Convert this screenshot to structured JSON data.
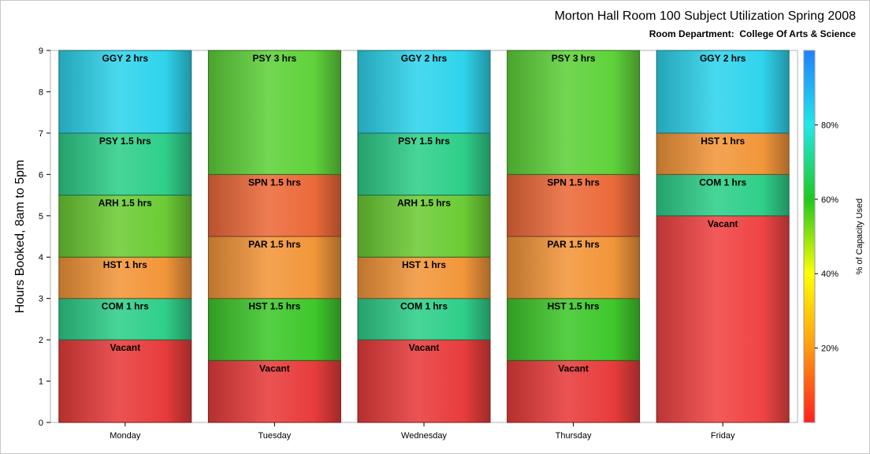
{
  "chart_data": {
    "type": "bar",
    "stacked": true,
    "title": "Morton Hall Room 100 Subject Utilization Spring 2008",
    "subtitle": "Room Department:  College Of Arts & Science",
    "ylabel": "Hours Booked, 8am to 5pm",
    "xlabel": "",
    "ylim": [
      0,
      9
    ],
    "yticks": [
      0,
      1,
      2,
      3,
      4,
      5,
      6,
      7,
      8,
      9
    ],
    "categories": [
      "Monday",
      "Tuesday",
      "Wednesday",
      "Thursday",
      "Friday"
    ],
    "stacks": [
      {
        "day": "Monday",
        "segments": [
          {
            "label": "Vacant",
            "hours": 2,
            "color": "#e83c3c"
          },
          {
            "label": "COM 1 hrs",
            "hours": 1,
            "color": "#2fcf8a"
          },
          {
            "label": "HST 1 hrs",
            "hours": 1,
            "color": "#f2963a"
          },
          {
            "label": "ARH 1.5 hrs",
            "hours": 1.5,
            "color": "#6ccc35"
          },
          {
            "label": "PSY 1.5 hrs",
            "hours": 1.5,
            "color": "#2fcf8a"
          },
          {
            "label": "GGY 2 hrs",
            "hours": 2,
            "color": "#2fd4ec"
          }
        ]
      },
      {
        "day": "Tuesday",
        "segments": [
          {
            "label": "Vacant",
            "hours": 1.5,
            "color": "#e83c3c"
          },
          {
            "label": "HST 1.5 hrs",
            "hours": 1.5,
            "color": "#3fc82c"
          },
          {
            "label": "PAR 1.5 hrs",
            "hours": 1.5,
            "color": "#f2963a"
          },
          {
            "label": "SPN 1.5 hrs",
            "hours": 1.5,
            "color": "#ec6a3a"
          },
          {
            "label": "PSY 3 hrs",
            "hours": 3,
            "color": "#5fd23a"
          }
        ]
      },
      {
        "day": "Wednesday",
        "segments": [
          {
            "label": "Vacant",
            "hours": 2,
            "color": "#e83c3c"
          },
          {
            "label": "COM 1 hrs",
            "hours": 1,
            "color": "#2fcf8a"
          },
          {
            "label": "HST 1 hrs",
            "hours": 1,
            "color": "#f2963a"
          },
          {
            "label": "ARH 1.5 hrs",
            "hours": 1.5,
            "color": "#6ccc35"
          },
          {
            "label": "PSY 1.5 hrs",
            "hours": 1.5,
            "color": "#2fcf8a"
          },
          {
            "label": "GGY 2 hrs",
            "hours": 2,
            "color": "#2fd4ec"
          }
        ]
      },
      {
        "day": "Thursday",
        "segments": [
          {
            "label": "Vacant",
            "hours": 1.5,
            "color": "#e83c3c"
          },
          {
            "label": "HST 1.5 hrs",
            "hours": 1.5,
            "color": "#3fc82c"
          },
          {
            "label": "PAR 1.5 hrs",
            "hours": 1.5,
            "color": "#f2963a"
          },
          {
            "label": "SPN 1.5 hrs",
            "hours": 1.5,
            "color": "#ec6a3a"
          },
          {
            "label": "PSY 3 hrs",
            "hours": 3,
            "color": "#5fd23a"
          }
        ]
      },
      {
        "day": "Friday",
        "segments": [
          {
            "label": "Vacant",
            "hours": 5,
            "color": "#f04444"
          },
          {
            "label": "COM 1 hrs",
            "hours": 1,
            "color": "#2fcf8a"
          },
          {
            "label": "HST 1 hrs",
            "hours": 1,
            "color": "#f2963a"
          },
          {
            "label": "GGY 2 hrs",
            "hours": 2,
            "color": "#2fd4ec"
          }
        ]
      }
    ],
    "colorbar": {
      "label": "% of Capacity Used",
      "ticks": [
        "20%",
        "40%",
        "60%",
        "80%"
      ],
      "tick_values": [
        20,
        40,
        60,
        80
      ],
      "range": [
        0,
        100
      ],
      "colors": [
        "#ff2020",
        "#ff9a10",
        "#ffff00",
        "#20c820",
        "#20e8e8",
        "#2080ff"
      ]
    }
  }
}
